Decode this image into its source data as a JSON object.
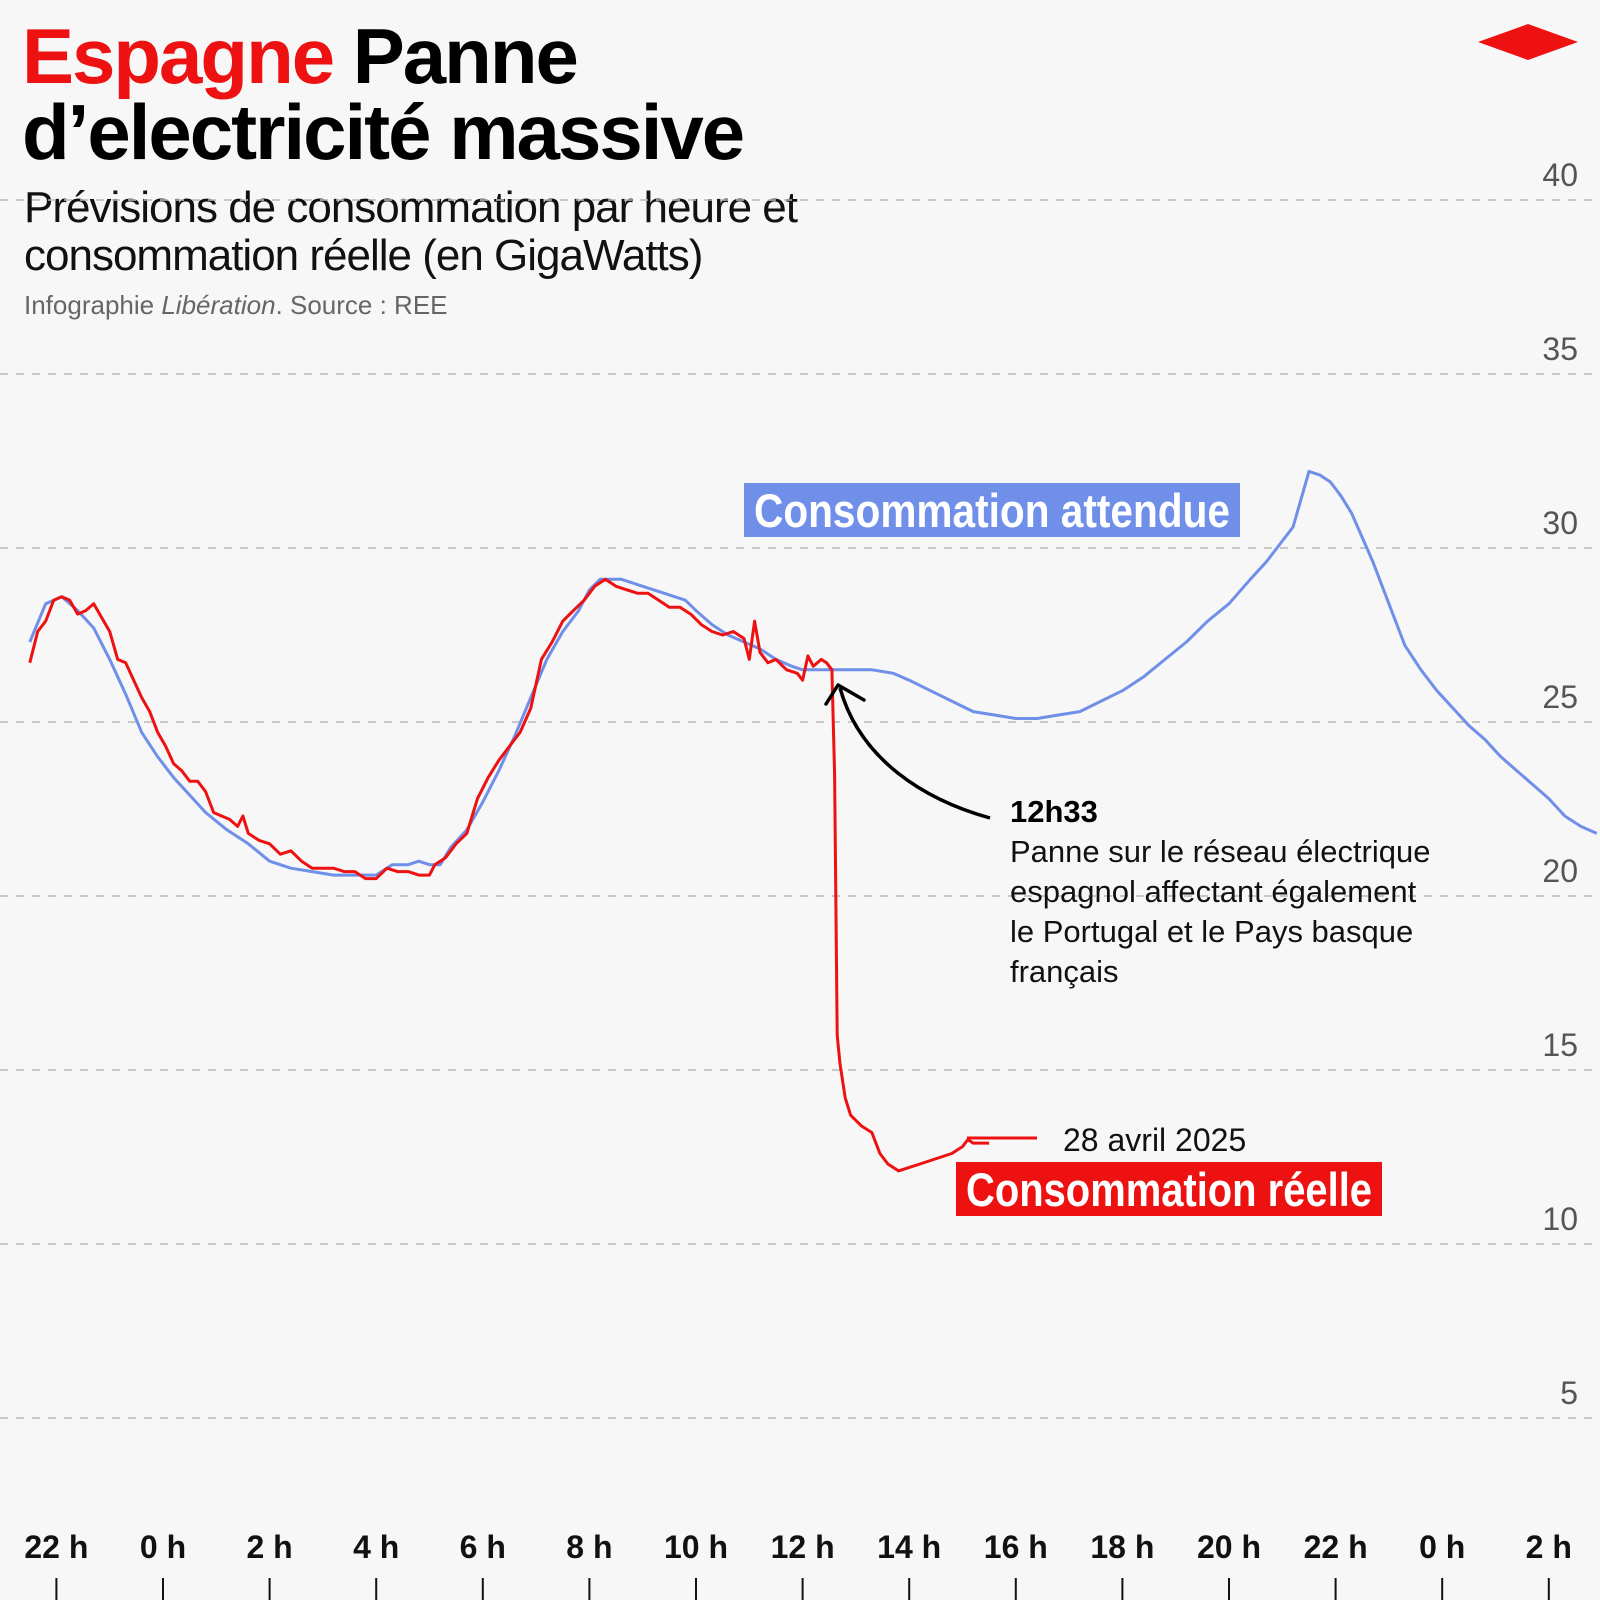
{
  "header": {
    "title_accent": "Espagne",
    "title_main": "Panne d’electricité massive",
    "subtitle": "Prévisions de consommation par heure et consommation réelle (en GigaWatts)",
    "credit_prefix": "Infographie",
    "credit_outlet": "Libération",
    "credit_source": ". Source : REE"
  },
  "colors": {
    "actual": "#ee1111",
    "expected": "#6f8fe8",
    "brand": "#ee1111",
    "grid": "#b8b8b8",
    "text": "#111111"
  },
  "annotations": {
    "outage_time": "12h33",
    "outage_text": [
      "Panne sur le réseau électrique",
      "espagnol affectant également",
      "le Portugal et le Pays basque",
      "français"
    ],
    "date_label": "28 avril 2025"
  },
  "chart_data": {
    "type": "line",
    "title": "",
    "xlabel": "",
    "ylabel": "",
    "x_unit": "hours since midnight of 28 April (negative = previous evening)",
    "xlim": [
      -2.5,
      27.9
    ],
    "ylim": [
      0,
      42
    ],
    "y_ticks": [
      5,
      10,
      15,
      20,
      25,
      30,
      35,
      40
    ],
    "x_ticks": [
      {
        "x": -2,
        "label": "22 h"
      },
      {
        "x": 0,
        "label": "0 h"
      },
      {
        "x": 2,
        "label": "2 h"
      },
      {
        "x": 4,
        "label": "4 h"
      },
      {
        "x": 6,
        "label": "6 h"
      },
      {
        "x": 8,
        "label": "8 h"
      },
      {
        "x": 10,
        "label": "10 h"
      },
      {
        "x": 12,
        "label": "12 h"
      },
      {
        "x": 14,
        "label": "14 h"
      },
      {
        "x": 16,
        "label": "16 h"
      },
      {
        "x": 18,
        "label": "18 h"
      },
      {
        "x": 20,
        "label": "20 h"
      },
      {
        "x": 22,
        "label": "22 h"
      },
      {
        "x": 24,
        "label": "0 h"
      },
      {
        "x": 26,
        "label": "2 h"
      }
    ],
    "grid": "horizontal dashed",
    "series": [
      {
        "name": "Consommation attendue",
        "color": "#6f8fe8",
        "points": [
          [
            -2.5,
            27.3
          ],
          [
            -2.2,
            28.4
          ],
          [
            -1.9,
            28.6
          ],
          [
            -1.6,
            28.2
          ],
          [
            -1.3,
            27.7
          ],
          [
            -1.0,
            26.8
          ],
          [
            -0.7,
            25.8
          ],
          [
            -0.4,
            24.7
          ],
          [
            -0.1,
            24.0
          ],
          [
            0.2,
            23.4
          ],
          [
            0.5,
            22.9
          ],
          [
            0.8,
            22.4
          ],
          [
            1.2,
            21.9
          ],
          [
            1.6,
            21.5
          ],
          [
            2.0,
            21.0
          ],
          [
            2.4,
            20.8
          ],
          [
            2.8,
            20.7
          ],
          [
            3.2,
            20.6
          ],
          [
            3.6,
            20.6
          ],
          [
            4.0,
            20.6
          ],
          [
            4.3,
            20.9
          ],
          [
            4.6,
            20.9
          ],
          [
            4.8,
            21.0
          ],
          [
            5.0,
            20.9
          ],
          [
            5.2,
            20.9
          ],
          [
            5.4,
            21.4
          ],
          [
            5.7,
            21.9
          ],
          [
            6.0,
            22.7
          ],
          [
            6.3,
            23.6
          ],
          [
            6.6,
            24.6
          ],
          [
            6.9,
            25.7
          ],
          [
            7.2,
            26.8
          ],
          [
            7.5,
            27.6
          ],
          [
            7.8,
            28.2
          ],
          [
            8.0,
            28.8
          ],
          [
            8.2,
            29.1
          ],
          [
            8.6,
            29.1
          ],
          [
            9.0,
            28.9
          ],
          [
            9.4,
            28.7
          ],
          [
            9.8,
            28.5
          ],
          [
            10.0,
            28.2
          ],
          [
            10.3,
            27.8
          ],
          [
            10.6,
            27.5
          ],
          [
            10.9,
            27.3
          ],
          [
            11.2,
            27.1
          ],
          [
            11.5,
            26.8
          ],
          [
            11.8,
            26.6
          ],
          [
            12.0,
            26.5
          ],
          [
            12.3,
            26.5
          ],
          [
            12.6,
            26.5
          ],
          [
            13.0,
            26.5
          ],
          [
            13.3,
            26.5
          ],
          [
            13.7,
            26.4
          ],
          [
            14.0,
            26.2
          ],
          [
            14.4,
            25.9
          ],
          [
            14.8,
            25.6
          ],
          [
            15.2,
            25.3
          ],
          [
            15.6,
            25.2
          ],
          [
            16.0,
            25.1
          ],
          [
            16.4,
            25.1
          ],
          [
            16.8,
            25.2
          ],
          [
            17.2,
            25.3
          ],
          [
            17.6,
            25.6
          ],
          [
            18.0,
            25.9
          ],
          [
            18.4,
            26.3
          ],
          [
            18.8,
            26.8
          ],
          [
            19.2,
            27.3
          ],
          [
            19.6,
            27.9
          ],
          [
            20.0,
            28.4
          ],
          [
            20.4,
            29.1
          ],
          [
            20.7,
            29.6
          ],
          [
            21.0,
            30.2
          ],
          [
            21.2,
            30.6
          ],
          [
            21.35,
            31.4
          ],
          [
            21.5,
            32.2
          ],
          [
            21.7,
            32.1
          ],
          [
            21.9,
            31.9
          ],
          [
            22.1,
            31.5
          ],
          [
            22.3,
            31.0
          ],
          [
            22.5,
            30.3
          ],
          [
            22.7,
            29.6
          ],
          [
            22.9,
            28.8
          ],
          [
            23.1,
            28.0
          ],
          [
            23.3,
            27.2
          ],
          [
            23.6,
            26.5
          ],
          [
            23.9,
            25.9
          ],
          [
            24.2,
            25.4
          ],
          [
            24.5,
            24.9
          ],
          [
            24.8,
            24.5
          ],
          [
            25.1,
            24.0
          ],
          [
            25.4,
            23.6
          ],
          [
            25.7,
            23.2
          ],
          [
            26.0,
            22.8
          ],
          [
            26.3,
            22.3
          ],
          [
            26.6,
            22.0
          ],
          [
            26.9,
            21.8
          ]
        ]
      },
      {
        "name": "Consommation réelle",
        "color": "#ee1111",
        "points": [
          [
            -2.5,
            26.7
          ],
          [
            -2.35,
            27.6
          ],
          [
            -2.2,
            27.9
          ],
          [
            -2.05,
            28.5
          ],
          [
            -1.9,
            28.6
          ],
          [
            -1.75,
            28.5
          ],
          [
            -1.6,
            28.1
          ],
          [
            -1.45,
            28.2
          ],
          [
            -1.3,
            28.4
          ],
          [
            -1.15,
            28.0
          ],
          [
            -1.0,
            27.6
          ],
          [
            -0.85,
            26.8
          ],
          [
            -0.7,
            26.7
          ],
          [
            -0.55,
            26.2
          ],
          [
            -0.4,
            25.7
          ],
          [
            -0.25,
            25.3
          ],
          [
            -0.1,
            24.7
          ],
          [
            0.05,
            24.3
          ],
          [
            0.2,
            23.8
          ],
          [
            0.35,
            23.6
          ],
          [
            0.5,
            23.3
          ],
          [
            0.65,
            23.3
          ],
          [
            0.8,
            23.0
          ],
          [
            0.95,
            22.4
          ],
          [
            1.1,
            22.3
          ],
          [
            1.25,
            22.2
          ],
          [
            1.4,
            22.0
          ],
          [
            1.5,
            22.3
          ],
          [
            1.6,
            21.8
          ],
          [
            1.8,
            21.6
          ],
          [
            2.0,
            21.5
          ],
          [
            2.2,
            21.2
          ],
          [
            2.4,
            21.3
          ],
          [
            2.6,
            21.0
          ],
          [
            2.8,
            20.8
          ],
          [
            3.0,
            20.8
          ],
          [
            3.2,
            20.8
          ],
          [
            3.4,
            20.7
          ],
          [
            3.6,
            20.7
          ],
          [
            3.8,
            20.5
          ],
          [
            4.0,
            20.5
          ],
          [
            4.2,
            20.8
          ],
          [
            4.4,
            20.7
          ],
          [
            4.6,
            20.7
          ],
          [
            4.8,
            20.6
          ],
          [
            5.0,
            20.6
          ],
          [
            5.1,
            20.9
          ],
          [
            5.3,
            21.1
          ],
          [
            5.5,
            21.5
          ],
          [
            5.7,
            21.8
          ],
          [
            5.9,
            22.8
          ],
          [
            6.1,
            23.4
          ],
          [
            6.3,
            23.9
          ],
          [
            6.5,
            24.3
          ],
          [
            6.7,
            24.7
          ],
          [
            6.9,
            25.4
          ],
          [
            7.1,
            26.8
          ],
          [
            7.3,
            27.3
          ],
          [
            7.5,
            27.9
          ],
          [
            7.7,
            28.2
          ],
          [
            7.9,
            28.5
          ],
          [
            8.1,
            28.9
          ],
          [
            8.3,
            29.1
          ],
          [
            8.5,
            28.9
          ],
          [
            8.7,
            28.8
          ],
          [
            8.9,
            28.7
          ],
          [
            9.1,
            28.7
          ],
          [
            9.3,
            28.5
          ],
          [
            9.5,
            28.3
          ],
          [
            9.7,
            28.3
          ],
          [
            9.9,
            28.1
          ],
          [
            10.1,
            27.8
          ],
          [
            10.3,
            27.6
          ],
          [
            10.5,
            27.5
          ],
          [
            10.7,
            27.6
          ],
          [
            10.9,
            27.4
          ],
          [
            11.0,
            26.8
          ],
          [
            11.1,
            27.9
          ],
          [
            11.2,
            27.0
          ],
          [
            11.35,
            26.7
          ],
          [
            11.5,
            26.8
          ],
          [
            11.7,
            26.5
          ],
          [
            11.9,
            26.4
          ],
          [
            12.0,
            26.2
          ],
          [
            12.1,
            26.9
          ],
          [
            12.2,
            26.6
          ],
          [
            12.35,
            26.8
          ],
          [
            12.45,
            26.7
          ],
          [
            12.55,
            26.5
          ],
          [
            12.6,
            23.5
          ],
          [
            12.65,
            16.0
          ],
          [
            12.7,
            15.2
          ],
          [
            12.8,
            14.2
          ],
          [
            12.9,
            13.7
          ],
          [
            13.1,
            13.4
          ],
          [
            13.3,
            13.2
          ],
          [
            13.45,
            12.6
          ],
          [
            13.6,
            12.3
          ],
          [
            13.8,
            12.1
          ],
          [
            14.0,
            12.2
          ],
          [
            14.2,
            12.3
          ],
          [
            14.4,
            12.4
          ],
          [
            14.6,
            12.5
          ],
          [
            14.8,
            12.6
          ],
          [
            15.0,
            12.8
          ],
          [
            15.1,
            13.0
          ],
          [
            15.2,
            12.9
          ],
          [
            15.3,
            12.9
          ],
          [
            15.4,
            12.9
          ],
          [
            15.5,
            12.9
          ]
        ]
      }
    ]
  }
}
